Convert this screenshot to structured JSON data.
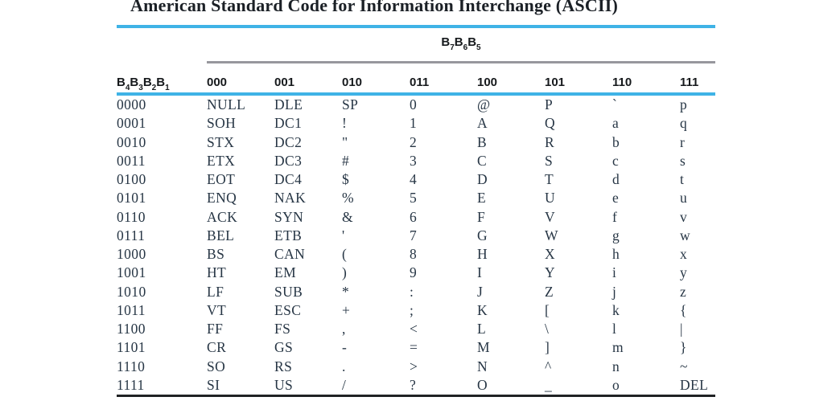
{
  "title": "American Standard Code for Information Interchange (ASCII)",
  "table": {
    "bit_group_label": [
      [
        "B",
        "7"
      ],
      [
        "B",
        "6"
      ],
      [
        "B",
        "5"
      ]
    ],
    "row_bits_label": [
      [
        "B",
        "4"
      ],
      [
        "B",
        "3"
      ],
      [
        "B",
        "2"
      ],
      [
        "B",
        "1"
      ]
    ],
    "column_headers": [
      "000",
      "001",
      "010",
      "011",
      "100",
      "101",
      "110",
      "111"
    ],
    "rows": [
      {
        "bits": "0000",
        "cells": [
          "NULL",
          "DLE",
          "SP",
          "0",
          "@",
          "P",
          "`",
          "p"
        ]
      },
      {
        "bits": "0001",
        "cells": [
          "SOH",
          "DC1",
          "!",
          "1",
          "A",
          "Q",
          "a",
          "q"
        ]
      },
      {
        "bits": "0010",
        "cells": [
          "STX",
          "DC2",
          "\"",
          "2",
          "B",
          "R",
          "b",
          "r"
        ]
      },
      {
        "bits": "0011",
        "cells": [
          "ETX",
          "DC3",
          "#",
          "3",
          "C",
          "S",
          "c",
          "s"
        ]
      },
      {
        "bits": "0100",
        "cells": [
          "EOT",
          "DC4",
          "$",
          "4",
          "D",
          "T",
          "d",
          "t"
        ]
      },
      {
        "bits": "0101",
        "cells": [
          "ENQ",
          "NAK",
          "%",
          "5",
          "E",
          "U",
          "e",
          "u"
        ]
      },
      {
        "bits": "0110",
        "cells": [
          "ACK",
          "SYN",
          "&",
          "6",
          "F",
          "V",
          "f",
          "v"
        ]
      },
      {
        "bits": "0111",
        "cells": [
          "BEL",
          "ETB",
          "'",
          "7",
          "G",
          "W",
          "g",
          "w"
        ]
      },
      {
        "bits": "1000",
        "cells": [
          "BS",
          "CAN",
          "(",
          "8",
          "H",
          "X",
          "h",
          "x"
        ]
      },
      {
        "bits": "1001",
        "cells": [
          "HT",
          "EM",
          ")",
          "9",
          "I",
          "Y",
          "i",
          "y"
        ]
      },
      {
        "bits": "1010",
        "cells": [
          "LF",
          "SUB",
          "*",
          ":",
          "J",
          "Z",
          "j",
          "z"
        ]
      },
      {
        "bits": "1011",
        "cells": [
          "VT",
          "ESC",
          "+",
          ";",
          "K",
          "[",
          "k",
          "{"
        ]
      },
      {
        "bits": "1100",
        "cells": [
          "FF",
          "FS",
          ",",
          "<",
          "L",
          "\\",
          "l",
          "|"
        ]
      },
      {
        "bits": "1101",
        "cells": [
          "CR",
          "GS",
          "-",
          "=",
          "M",
          "]",
          "m",
          "}"
        ]
      },
      {
        "bits": "1110",
        "cells": [
          "SO",
          "RS",
          ".",
          ">",
          "N",
          "^",
          "n",
          "~"
        ]
      },
      {
        "bits": "1111",
        "cells": [
          "SI",
          "US",
          "/",
          "?",
          "O",
          "_",
          "o",
          "DEL"
        ]
      }
    ]
  },
  "colors": {
    "accent_rule": "#3fb3e6",
    "gray_rule": "#97979d",
    "bottom_rule": "#202224",
    "body_text": "#273645",
    "header_text": "#16191c"
  }
}
